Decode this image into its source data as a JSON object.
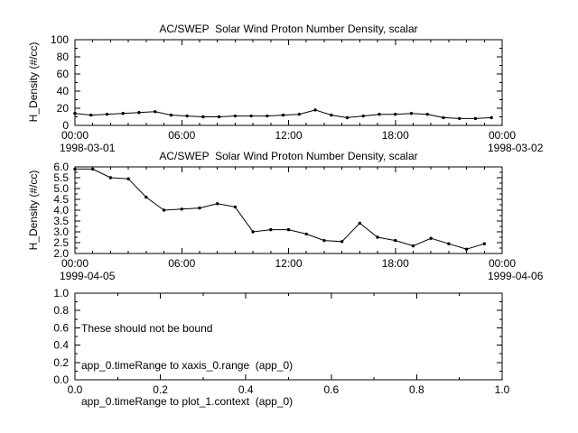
{
  "canvas": {
    "background": "#ffffff",
    "foreground": "#000000"
  },
  "chart_data": [
    {
      "type": "line",
      "title": "AC/SWEP  Solar Wind Proton Number Density, scalar",
      "ylabel": "H_Density (#/cc)",
      "ylim": [
        0,
        100
      ],
      "yticks": [
        0,
        20,
        40,
        60,
        80,
        100
      ],
      "ytick_labels": [
        "0",
        "20",
        "40",
        "60",
        "80",
        "100"
      ],
      "y_minor_step": 10,
      "xlim": [
        0,
        24
      ],
      "xticks": [
        0,
        6,
        12,
        18,
        24
      ],
      "xtick_labels": [
        "00:00",
        "06:00",
        "12:00",
        "18:00",
        "00:00"
      ],
      "x_minor_step": 1,
      "xdate_left": "1998-03-01",
      "xdate_right": "1998-03-02",
      "legend": null,
      "grid": false,
      "x": [
        0,
        0.9,
        1.8,
        2.7,
        3.6,
        4.5,
        5.4,
        6.3,
        7.2,
        8.1,
        9,
        9.9,
        10.8,
        11.7,
        12.6,
        13.5,
        14.4,
        15.3,
        16.2,
        17.1,
        18,
        18.9,
        19.8,
        20.7,
        21.6,
        22.5,
        23.4
      ],
      "y": [
        14,
        12,
        13,
        14,
        15,
        16,
        12,
        11,
        10,
        10,
        11,
        11,
        11,
        12,
        13,
        18,
        12,
        9,
        11,
        13,
        13,
        14,
        13,
        9,
        8,
        8,
        9
      ]
    },
    {
      "type": "line",
      "title": "AC/SWEP  Solar Wind Proton Number Density, scalar",
      "ylabel": "H_Density (#/cc)",
      "ylim": [
        2,
        6
      ],
      "yticks": [
        2,
        2.5,
        3,
        3.5,
        4,
        4.5,
        5,
        5.5,
        6
      ],
      "ytick_labels": [
        "2.0",
        "2.5",
        "3.0",
        "3.5",
        "4.0",
        "4.5",
        "5.0",
        "5.5",
        "6.0"
      ],
      "y_minor_step": 0.25,
      "xlim": [
        0,
        24
      ],
      "xticks": [
        0,
        6,
        12,
        18,
        24
      ],
      "xtick_labels": [
        "00:00",
        "06:00",
        "12:00",
        "18:00",
        "00:00"
      ],
      "x_minor_step": 1,
      "xdate_left": "1999-04-05",
      "xdate_right": "1999-04-06",
      "legend": null,
      "grid": false,
      "x": [
        0,
        1,
        2,
        3,
        4,
        5,
        6,
        7,
        8,
        9,
        10,
        11,
        12,
        13,
        14,
        15,
        16,
        17,
        18,
        19,
        20,
        21,
        22,
        23
      ],
      "y": [
        5.9,
        5.9,
        5.5,
        5.45,
        4.6,
        4.0,
        4.05,
        4.1,
        4.3,
        4.15,
        3.0,
        3.1,
        3.1,
        2.9,
        2.6,
        2.55,
        3.4,
        2.75,
        2.6,
        2.35,
        2.7,
        2.45,
        2.2,
        2.45
      ]
    },
    {
      "type": "line",
      "title": "",
      "ylabel": "",
      "ylim": [
        0,
        1
      ],
      "yticks": [
        0,
        0.2,
        0.4,
        0.6,
        0.8,
        1
      ],
      "ytick_labels": [
        "0.0",
        "0.2",
        "0.4",
        "0.6",
        "0.8",
        "1.0"
      ],
      "y_minor_step": 0.1,
      "xlim": [
        0,
        1
      ],
      "xticks": [
        0,
        0.2,
        0.4,
        0.6,
        0.8,
        1
      ],
      "xtick_labels": [
        "0.0",
        "0.2",
        "0.4",
        "0.6",
        "0.8",
        "1.0"
      ],
      "x_minor_step": 0.1,
      "legend": null,
      "grid": false,
      "x": [],
      "y": [],
      "annotations": [
        "These should not be bound",
        "app_0.timeRange to xaxis_0.range  (app_0)",
        "app_0.timeRange to plot_1.context  (app_0)"
      ]
    }
  ]
}
